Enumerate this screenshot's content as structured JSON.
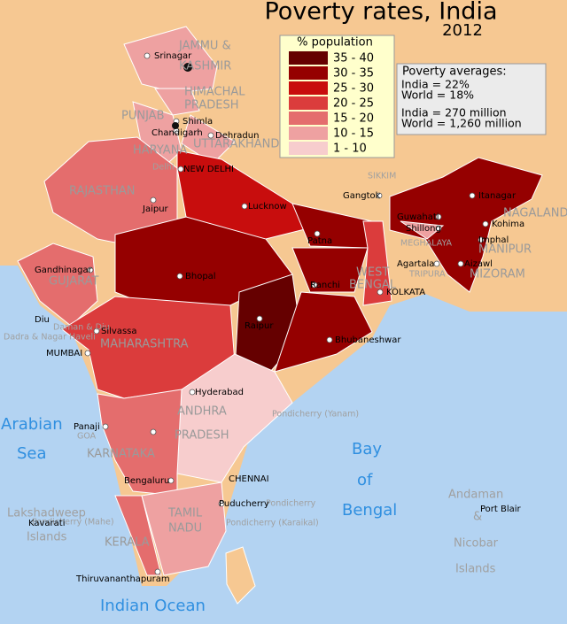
{
  "title": "Poverty rates, India",
  "year": "2012",
  "legend": {
    "title": "% population",
    "items": [
      {
        "label": "35 - 40",
        "color": "#650000"
      },
      {
        "label": "30 - 35",
        "color": "#950000"
      },
      {
        "label": "25 - 30",
        "color": "#c80d0d"
      },
      {
        "label": "20 - 25",
        "color": "#db3c3c"
      },
      {
        "label": "15 - 20",
        "color": "#e46d6d"
      },
      {
        "label": "10 - 15",
        "color": "#eea1a1"
      },
      {
        "label": "1 - 10",
        "color": "#f7cdcd"
      }
    ]
  },
  "averages": {
    "title": "Poverty averages:",
    "lines": [
      "India = 22%",
      "World = 18%",
      "India =   270 million",
      "World = 1,260 million"
    ]
  },
  "labels": [
    "JAMMU &",
    "KASHMIR",
    "HIMACHAL",
    "PRADESH",
    "PUNJAB",
    "HARYANA",
    "UTTARAKHAND",
    "Delhi",
    "RAJASTHAN",
    "SIKKIM",
    "NAGALAND",
    "MANIPUR",
    "MEGHALAYA",
    "TRIPURA",
    "MIZORAM",
    "WEST",
    "BENGAL",
    "GUJARAT",
    "Daman & Diu",
    "Dadra & Nagar Haveli",
    "MAHARASHTRA",
    "ANDHRA",
    "PRADESH",
    "GOA",
    "KARNATAKA",
    "TAMIL",
    "NADU",
    "KERALA",
    "Pondicherry (Yanam)",
    "Pondicherry (Mahe)",
    "Pondicherry",
    "Pondicherry (Karaikal)",
    "Andaman",
    "&",
    "Nicobar",
    "Islands",
    "Lakshadweep",
    "Islands",
    "Srinagar",
    "Shimla",
    "Chandigarh",
    "Dehradun",
    "NEW DELHI",
    "Jaipur",
    "Lucknow",
    "Patna",
    "Gangtok",
    "Itanagar",
    "Guwahati",
    "Kohima",
    "Shillong",
    "Imphal",
    "Agartala",
    "Aizawl",
    "Gandhinagar",
    "Bhopal",
    "Ranchi",
    "KOLKATA",
    "Raipur",
    "Bhubaneshwar",
    "Diu",
    "Silvassa",
    "MUMBAI",
    "Hyderabad",
    "Panaji",
    "Bengaluru",
    "CHENNAI",
    "Puducherry",
    "Kavarati",
    "Thiruvananthapuram",
    "Port Blair",
    "Arabian",
    "Sea",
    "Bay",
    "of",
    "Bengal",
    "Indian Ocean"
  ]
}
